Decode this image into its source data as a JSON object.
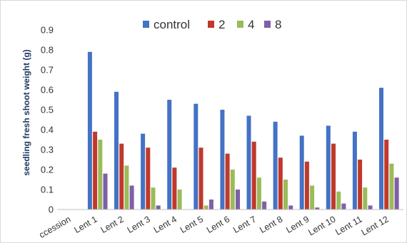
{
  "chart_data": {
    "type": "bar",
    "title": "",
    "xlabel": "",
    "ylabel": "seedling fresh shoot weight (g)",
    "ylim": [
      0,
      0.9
    ],
    "yticks": [
      "0",
      "0.1",
      "0.2",
      "0.3",
      "0.4",
      "0.5",
      "0.6",
      "0.7",
      "0.8",
      "0.9"
    ],
    "grid": false,
    "legend_position": "top",
    "categories": [
      "ccession",
      "Lent 1",
      "Lent 2",
      "Lent 3",
      "Lent 4",
      "Lent 5",
      "Lent 6",
      "Lent 7",
      "Lent 8",
      "Lent 9",
      "Lent 10",
      "Lent 11",
      "Lent 12"
    ],
    "series": [
      {
        "name": "control",
        "color": "#4472c4",
        "values": [
          0,
          0.79,
          0.59,
          0.38,
          0.55,
          0.53,
          0.5,
          0.47,
          0.44,
          0.37,
          0.42,
          0.39,
          0.61
        ]
      },
      {
        "name": "2",
        "color": "#c0392b",
        "values": [
          0,
          0.39,
          0.33,
          0.31,
          0.21,
          0.31,
          0.28,
          0.34,
          0.26,
          0.24,
          0.33,
          0.25,
          0.35
        ]
      },
      {
        "name": "4",
        "color": "#9bbb59",
        "values": [
          0,
          0.35,
          0.22,
          0.11,
          0.1,
          0.02,
          0.2,
          0.16,
          0.15,
          0.12,
          0.09,
          0.11,
          0.23
        ]
      },
      {
        "name": "8",
        "color": "#7f5fa8",
        "values": [
          0,
          0.18,
          0.12,
          0.02,
          0,
          0.05,
          0.1,
          0.04,
          0.02,
          0.01,
          0.03,
          0.02,
          0.16
        ]
      }
    ]
  }
}
